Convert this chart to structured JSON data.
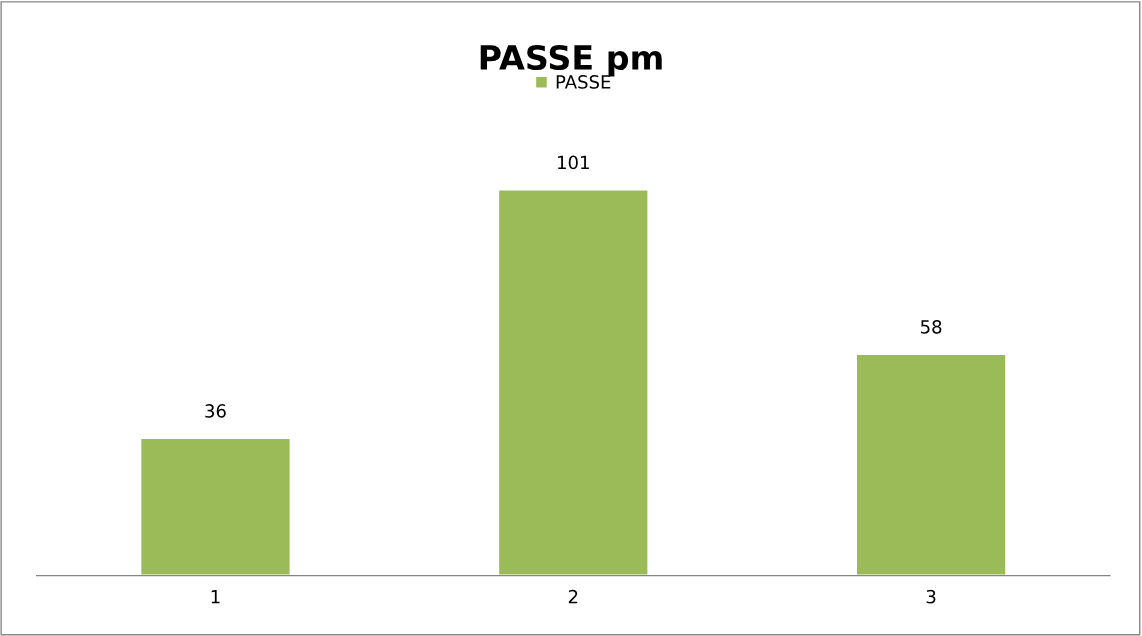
{
  "chart_data": {
    "type": "bar",
    "title": "PASSE pm",
    "categories": [
      "1",
      "2",
      "3"
    ],
    "series": [
      {
        "name": "PASSE",
        "color": "#9bbb59",
        "values": [
          36,
          101,
          58
        ]
      }
    ],
    "data_labels": true,
    "legend": "top",
    "grid": false
  }
}
